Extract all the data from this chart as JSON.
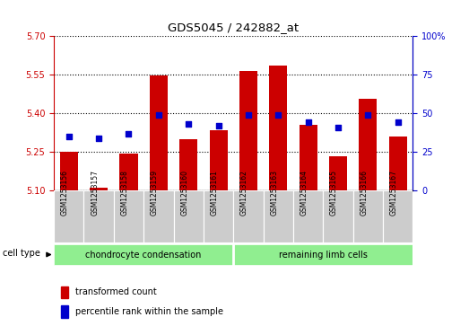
{
  "title": "GDS5045 / 242882_at",
  "samples": [
    "GSM1253156",
    "GSM1253157",
    "GSM1253158",
    "GSM1253159",
    "GSM1253160",
    "GSM1253161",
    "GSM1253162",
    "GSM1253163",
    "GSM1253164",
    "GSM1253165",
    "GSM1253166",
    "GSM1253167"
  ],
  "red_values": [
    5.25,
    5.11,
    5.245,
    5.547,
    5.3,
    5.335,
    5.565,
    5.585,
    5.355,
    5.235,
    5.455,
    5.31
  ],
  "blue_values": [
    35,
    34,
    37,
    49,
    43,
    42,
    49,
    49,
    44,
    41,
    49,
    44
  ],
  "y_min": 5.1,
  "y_max": 5.7,
  "y_ticks": [
    5.1,
    5.25,
    5.4,
    5.55,
    5.7
  ],
  "y2_ticks": [
    0,
    25,
    50,
    75,
    100
  ],
  "groups": [
    {
      "label": "chondrocyte condensation",
      "start": 0,
      "end": 6,
      "color": "#90ee90"
    },
    {
      "label": "remaining limb cells",
      "start": 6,
      "end": 12,
      "color": "#90ee90"
    }
  ],
  "cell_type_label": "cell type",
  "legend_red": "transformed count",
  "legend_blue": "percentile rank within the sample",
  "bar_color": "#cc0000",
  "dot_color": "#0000cc",
  "sample_bg": "#cccccc",
  "left_axis_color": "#cc0000",
  "right_axis_color": "#0000cc"
}
